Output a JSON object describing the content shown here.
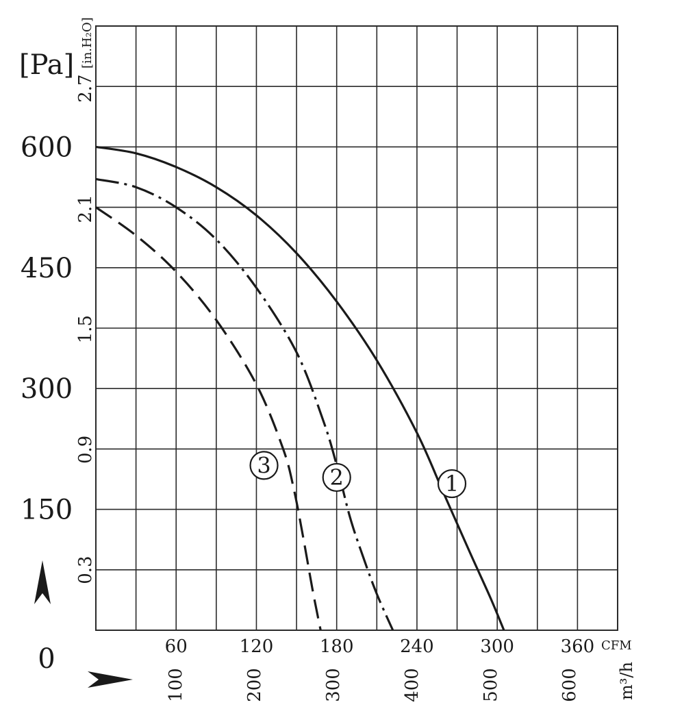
{
  "chart_data": {
    "type": "line",
    "title": "",
    "y_unit_pa": "[Pa]",
    "y_unit_inh2o": "[in.H₂O]",
    "x_unit_cfm": "CFM",
    "x_unit_m3h": "m³/h",
    "ylim_pa": [
      0,
      750
    ],
    "xlim_cfm": [
      0,
      390
    ],
    "grid": true,
    "y_ticks_pa": [
      "600",
      "450",
      "300",
      "150",
      "0"
    ],
    "y_ticks_inh2o": [
      "2.7",
      "2.1",
      "1.5",
      "0.9",
      "0.3"
    ],
    "x_ticks_cfm": [
      "60",
      "120",
      "180",
      "240",
      "300",
      "360"
    ],
    "x_ticks_m3h": [
      "100",
      "200",
      "300",
      "400",
      "500",
      "600"
    ],
    "series": [
      {
        "name": "1",
        "style": "solid",
        "x": [
          0,
          30,
          60,
          90,
          120,
          150,
          180,
          210,
          240,
          260,
          280,
          295,
          305
        ],
        "y": [
          600,
          592,
          575,
          550,
          515,
          468,
          408,
          335,
          245,
          170,
          95,
          40,
          0
        ]
      },
      {
        "name": "2",
        "style": "dashdot",
        "x": [
          0,
          30,
          60,
          90,
          120,
          150,
          170,
          180,
          190,
          200,
          210,
          222
        ],
        "y": [
          560,
          550,
          525,
          485,
          425,
          345,
          260,
          205,
          140,
          90,
          45,
          0
        ]
      },
      {
        "name": "3",
        "style": "dashed",
        "x": [
          0,
          30,
          60,
          90,
          120,
          140,
          148,
          155,
          162,
          168
        ],
        "y": [
          525,
          490,
          445,
          385,
          305,
          225,
          175,
          115,
          50,
          0
        ]
      }
    ]
  }
}
